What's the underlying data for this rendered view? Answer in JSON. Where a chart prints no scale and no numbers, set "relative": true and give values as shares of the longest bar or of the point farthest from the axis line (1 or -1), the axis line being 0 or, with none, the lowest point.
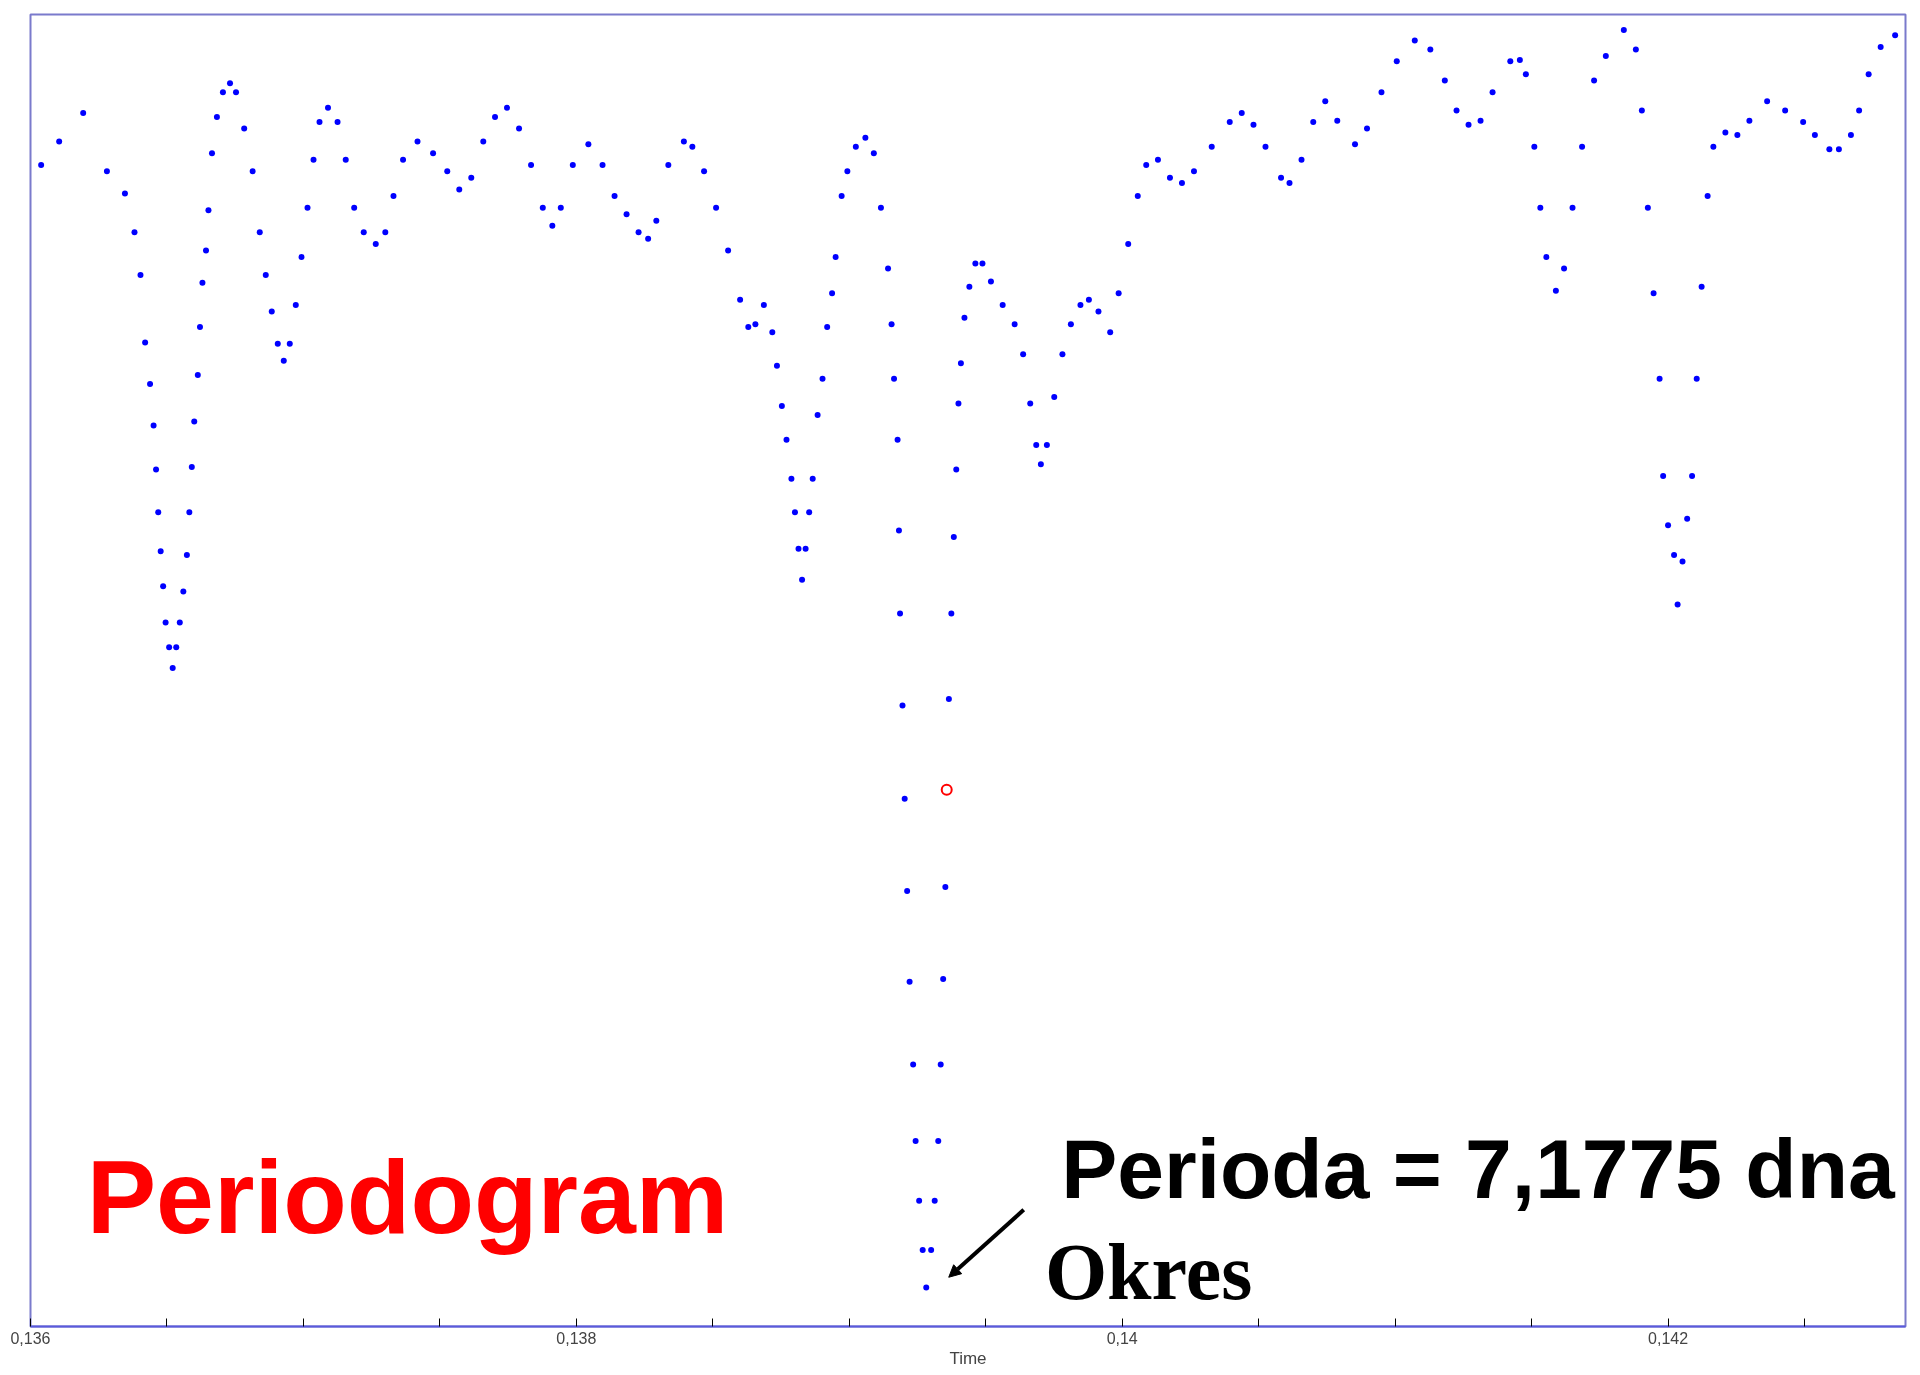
{
  "chart_data": {
    "type": "scatter",
    "relative": true,
    "xlabel": "Time",
    "marker": "circle",
    "grid": false,
    "tick_labels": "x",
    "xlim": [
      0.136,
      0.14287
    ],
    "xticks": [
      {
        "value": 0.136,
        "label": "0,136"
      },
      {
        "value": 0.1365,
        "label": null
      },
      {
        "value": 0.137,
        "label": null
      },
      {
        "value": 0.1375,
        "label": null
      },
      {
        "value": 0.138,
        "label": "0,138"
      },
      {
        "value": 0.1385,
        "label": null
      },
      {
        "value": 0.139,
        "label": null
      },
      {
        "value": 0.1395,
        "label": null
      },
      {
        "value": 0.14,
        "label": "0,14"
      },
      {
        "value": 0.1405,
        "label": null
      },
      {
        "value": 0.141,
        "label": null
      },
      {
        "value": 0.1415,
        "label": null
      },
      {
        "value": 0.142,
        "label": "0,142"
      },
      {
        "value": 0.1425,
        "label": null
      }
    ],
    "annotations": [
      "Periodogram",
      {
        "text": "Perioda = 7,1775 dna",
        "x": 0.139282,
        "y": 0.03
      },
      "Okres"
    ],
    "series": [
      {
        "color": "#0000ff",
        "x": [
          0.136039,
          0.136105,
          0.136193,
          0.13628,
          0.136346,
          0.136381,
          0.136403,
          0.13642,
          0.136438,
          0.136451,
          0.13646,
          0.136468,
          0.136477,
          0.136486,
          0.136495,
          0.136508,
          0.136521,
          0.136534,
          0.136547,
          0.13656,
          0.136573,
          0.136582,
          0.136591,
          0.1366,
          0.136613,
          0.136621,
          0.13663,
          0.136643,
          0.136652,
          0.136665,
          0.136683,
          0.136705,
          0.136731,
          0.136753,
          0.136783,
          0.136814,
          0.13684,
          0.136862,
          0.136884,
          0.136906,
          0.136928,
          0.13695,
          0.136972,
          0.136993,
          0.137015,
          0.137037,
          0.137059,
          0.13709,
          0.137125,
          0.137155,
          0.137186,
          0.137221,
          0.137265,
          0.1373,
          0.13733,
          0.137365,
          0.137418,
          0.137475,
          0.137527,
          0.137571,
          0.137615,
          0.137659,
          0.137702,
          0.137746,
          0.13779,
          0.137834,
          0.137877,
          0.137912,
          0.137943,
          0.137987,
          0.138044,
          0.138096,
          0.13814,
          0.138184,
          0.138228,
          0.138263,
          0.138293,
          0.138337,
          0.138394,
          0.138425,
          0.138468,
          0.138512,
          0.138556,
          0.1386,
          0.13863,
          0.138656,
          0.138687,
          0.138718,
          0.138735,
          0.138753,
          0.13877,
          0.138788,
          0.138801,
          0.138814,
          0.138827,
          0.13884,
          0.138853,
          0.138866,
          0.138884,
          0.138902,
          0.138919,
          0.138937,
          0.13895,
          0.138972,
          0.138993,
          0.139024,
          0.139059,
          0.13909,
          0.139116,
          0.139142,
          0.139155,
          0.139164,
          0.139177,
          0.139182,
          0.139186,
          0.139195,
          0.139203,
          0.139212,
          0.139221,
          0.139234,
          0.139243,
          0.139256,
          0.139269,
          0.139282,
          0.1393,
          0.139313,
          0.139326,
          0.139335,
          0.139344,
          0.139352,
          0.139365,
          0.139374,
          0.139383,
          0.139392,
          0.1394,
          0.139409,
          0.139422,
          0.13944,
          0.139462,
          0.139488,
          0.139519,
          0.139562,
          0.139606,
          0.139637,
          0.139663,
          0.139685,
          0.139702,
          0.139724,
          0.139751,
          0.139781,
          0.139812,
          0.139847,
          0.139878,
          0.139913,
          0.139956,
          0.139987,
          0.140022,
          0.140057,
          0.140088,
          0.140131,
          0.140175,
          0.140219,
          0.140263,
          0.140328,
          0.140394,
          0.140438,
          0.140481,
          0.140525,
          0.140582,
          0.140613,
          0.140657,
          0.1407,
          0.140744,
          0.140788,
          0.140853,
          0.140897,
          0.14095,
          0.141006,
          0.141072,
          0.141129,
          0.141182,
          0.141225,
          0.141269,
          0.141313,
          0.141357,
          0.141422,
          0.141457,
          0.141479,
          0.14151,
          0.141532,
          0.141554,
          0.141589,
          0.141619,
          0.14165,
          0.141685,
          0.141729,
          0.141772,
          0.141838,
          0.141882,
          0.141904,
          0.141926,
          0.141947,
          0.141969,
          0.141982,
          0.142,
          0.142022,
          0.142035,
          0.142053,
          0.14207,
          0.142088,
          0.142105,
          0.142123,
          0.142145,
          0.142166,
          0.14221,
          0.142254,
          0.142298,
          0.142363,
          0.142429,
          0.142495,
          0.142538,
          0.142591,
          0.142626,
          0.14267,
          0.1427,
          0.142735,
          0.142779,
          0.142832
        ],
        "values": [
          0.896,
          0.914,
          0.936,
          0.891,
          0.874,
          0.844,
          0.811,
          0.759,
          0.727,
          0.695,
          0.661,
          0.628,
          0.598,
          0.571,
          0.543,
          0.524,
          0.508,
          0.524,
          0.543,
          0.567,
          0.595,
          0.628,
          0.663,
          0.698,
          0.734,
          0.771,
          0.805,
          0.83,
          0.861,
          0.905,
          0.933,
          0.952,
          0.959,
          0.952,
          0.924,
          0.891,
          0.844,
          0.811,
          0.783,
          0.758,
          0.745,
          0.758,
          0.788,
          0.825,
          0.863,
          0.9,
          0.929,
          0.94,
          0.929,
          0.9,
          0.863,
          0.844,
          0.835,
          0.844,
          0.872,
          0.9,
          0.914,
          0.905,
          0.891,
          0.877,
          0.886,
          0.914,
          0.933,
          0.94,
          0.924,
          0.896,
          0.863,
          0.849,
          0.863,
          0.896,
          0.912,
          0.896,
          0.872,
          0.858,
          0.844,
          0.839,
          0.853,
          0.896,
          0.914,
          0.91,
          0.891,
          0.863,
          0.83,
          0.792,
          0.771,
          0.773,
          0.788,
          0.767,
          0.741,
          0.71,
          0.684,
          0.654,
          0.628,
          0.6,
          0.576,
          0.6,
          0.628,
          0.654,
          0.703,
          0.731,
          0.771,
          0.797,
          0.825,
          0.872,
          0.891,
          0.91,
          0.917,
          0.905,
          0.863,
          0.816,
          0.773,
          0.731,
          0.684,
          0.614,
          0.55,
          0.479,
          0.407,
          0.336,
          0.266,
          0.202,
          0.143,
          0.097,
          0.059,
          0.03,
          0.059,
          0.097,
          0.143,
          0.202,
          0.268,
          0.339,
          0.484,
          0.55,
          0.609,
          0.661,
          0.712,
          0.743,
          0.778,
          0.802,
          0.82,
          0.82,
          0.806,
          0.788,
          0.773,
          0.75,
          0.712,
          0.68,
          0.665,
          0.68,
          0.717,
          0.75,
          0.773,
          0.788,
          0.792,
          0.783,
          0.767,
          0.797,
          0.835,
          0.872,
          0.896,
          0.9,
          0.886,
          0.882,
          0.891,
          0.91,
          0.929,
          0.936,
          0.927,
          0.91,
          0.886,
          0.882,
          0.9,
          0.929,
          0.945,
          0.93,
          0.912,
          0.924,
          0.952,
          0.976,
          0.992,
          0.985,
          0.961,
          0.938,
          0.927,
          0.93,
          0.952,
          0.976,
          0.977,
          0.966,
          0.91,
          0.863,
          0.825,
          0.799,
          0.816,
          0.863,
          0.91,
          0.961,
          0.98,
          1.0,
          0.985,
          0.938,
          0.863,
          0.797,
          0.731,
          0.656,
          0.618,
          0.595,
          0.557,
          0.59,
          0.623,
          0.656,
          0.731,
          0.802,
          0.872,
          0.91,
          0.921,
          0.919,
          0.93,
          0.945,
          0.938,
          0.929,
          0.919,
          0.908,
          0.908,
          0.919,
          0.938,
          0.966,
          0.987,
          0.996
        ]
      },
      {
        "color": "#ff0000",
        "x": [
          0.139357
        ],
        "values": [
          0.414
        ]
      }
    ]
  }
}
